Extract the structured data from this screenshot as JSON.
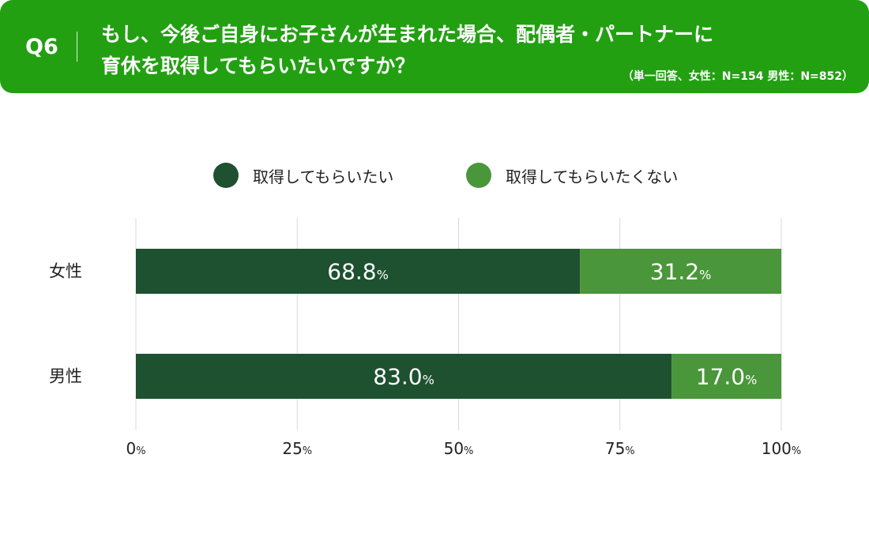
{
  "header": {
    "qnum": "Q6",
    "question_line1": "もし、今後ご自身にお子さんが生まれた場合、配偶者・パートナーに",
    "question_line2": "育休を取得してもらいたいですか？",
    "note": "（単一回答、女性：N=154 男性：N=852）"
  },
  "colors": {
    "header_bg": "#22a012",
    "series_yes": "#1d5130",
    "series_no": "#4a963a",
    "grid": "#d9d9d9"
  },
  "chart_data": {
    "type": "bar",
    "orientation": "horizontal",
    "stacked": true,
    "categories": [
      "女性",
      "男性"
    ],
    "series": [
      {
        "name": "取得してもらいたい",
        "values": [
          68.8,
          83.0
        ],
        "labels": [
          "68.8",
          "83.0"
        ]
      },
      {
        "name": "取得してもらいたくない",
        "values": [
          31.2,
          17.0
        ],
        "labels": [
          "31.2",
          "17.0"
        ]
      }
    ],
    "xlim": [
      0,
      100
    ],
    "xticks": [
      0,
      25,
      50,
      75,
      100
    ],
    "unit": "%",
    "grid": "vertical",
    "legend_position": "top"
  }
}
